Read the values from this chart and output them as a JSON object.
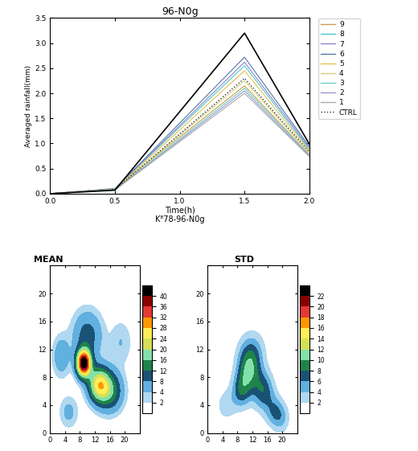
{
  "title": "96-N0g",
  "xlabel": "Time(h)",
  "ylabel": "Averaged rainfall(mm)",
  "subtitle": "K⁸78-96-N0g",
  "ylim": [
    0.0,
    3.5
  ],
  "xlim": [
    0,
    2
  ],
  "xticks": [
    0,
    0.5,
    1,
    1.5,
    2
  ],
  "yticks": [
    0.0,
    0.5,
    1.0,
    1.5,
    2.0,
    2.5,
    3.0,
    3.5
  ],
  "time_points": [
    0,
    0.5,
    1.5,
    2
  ],
  "line_defs": [
    {
      "label": "9",
      "color": "#c8a050",
      "peak": 2.15,
      "end": 0.78
    },
    {
      "label": "8",
      "color": "#50c8c8",
      "peak": 2.55,
      "end": 0.88
    },
    {
      "label": "7",
      "color": "#8888cc",
      "peak": 2.62,
      "end": 0.91
    },
    {
      "label": "6",
      "color": "#5577aa",
      "peak": 2.72,
      "end": 0.94
    },
    {
      "label": "5",
      "color": "#e8c050",
      "peak": 2.45,
      "end": 0.85
    },
    {
      "label": "4",
      "color": "#d0d080",
      "peak": 2.25,
      "end": 0.81
    },
    {
      "label": "3",
      "color": "#70cccc",
      "peak": 2.1,
      "end": 0.77
    },
    {
      "label": "2",
      "color": "#9999cc",
      "peak": 2.05,
      "end": 0.75
    },
    {
      "label": "1",
      "color": "#aaaaaa",
      "peak": 2.0,
      "end": 0.74
    }
  ],
  "ctrl": {
    "color": "#333333",
    "peak": 2.3,
    "end": 0.83
  },
  "ens_black": {
    "peak": 3.2,
    "end": 0.99
  },
  "mean_levels": [
    0,
    2,
    4,
    8,
    12,
    16,
    20,
    24,
    28,
    32,
    36,
    40,
    50
  ],
  "mean_colors": [
    "white",
    "#b0d8f0",
    "#60b0e0",
    "#1a5276",
    "#1e8449",
    "#82e0aa",
    "#d4e157",
    "#ffee58",
    "#ff9800",
    "#e53935",
    "#8b0000",
    "#000000"
  ],
  "mean_ticks": [
    2,
    4,
    8,
    12,
    16,
    20,
    24,
    28,
    32,
    36,
    40
  ],
  "std_levels": [
    0,
    2,
    4,
    6,
    8,
    10,
    12,
    14,
    16,
    18,
    20,
    22,
    30
  ],
  "std_colors": [
    "white",
    "#b0d8f0",
    "#60b0e0",
    "#1a5276",
    "#1e8449",
    "#82e0aa",
    "#d4e157",
    "#ffee58",
    "#ff9800",
    "#e53935",
    "#8b0000",
    "#000000"
  ],
  "std_ticks": [
    2,
    4,
    6,
    8,
    10,
    12,
    14,
    16,
    18,
    20,
    22
  ],
  "map_xticks": [
    0,
    4,
    8,
    12,
    16,
    20
  ],
  "map_yticks": [
    0,
    4,
    8,
    12,
    16,
    20
  ],
  "map_xlim": [
    0,
    24
  ],
  "map_ylim": [
    0,
    24
  ],
  "mean_panel_title": "MEAN",
  "std_panel_title": "STD"
}
